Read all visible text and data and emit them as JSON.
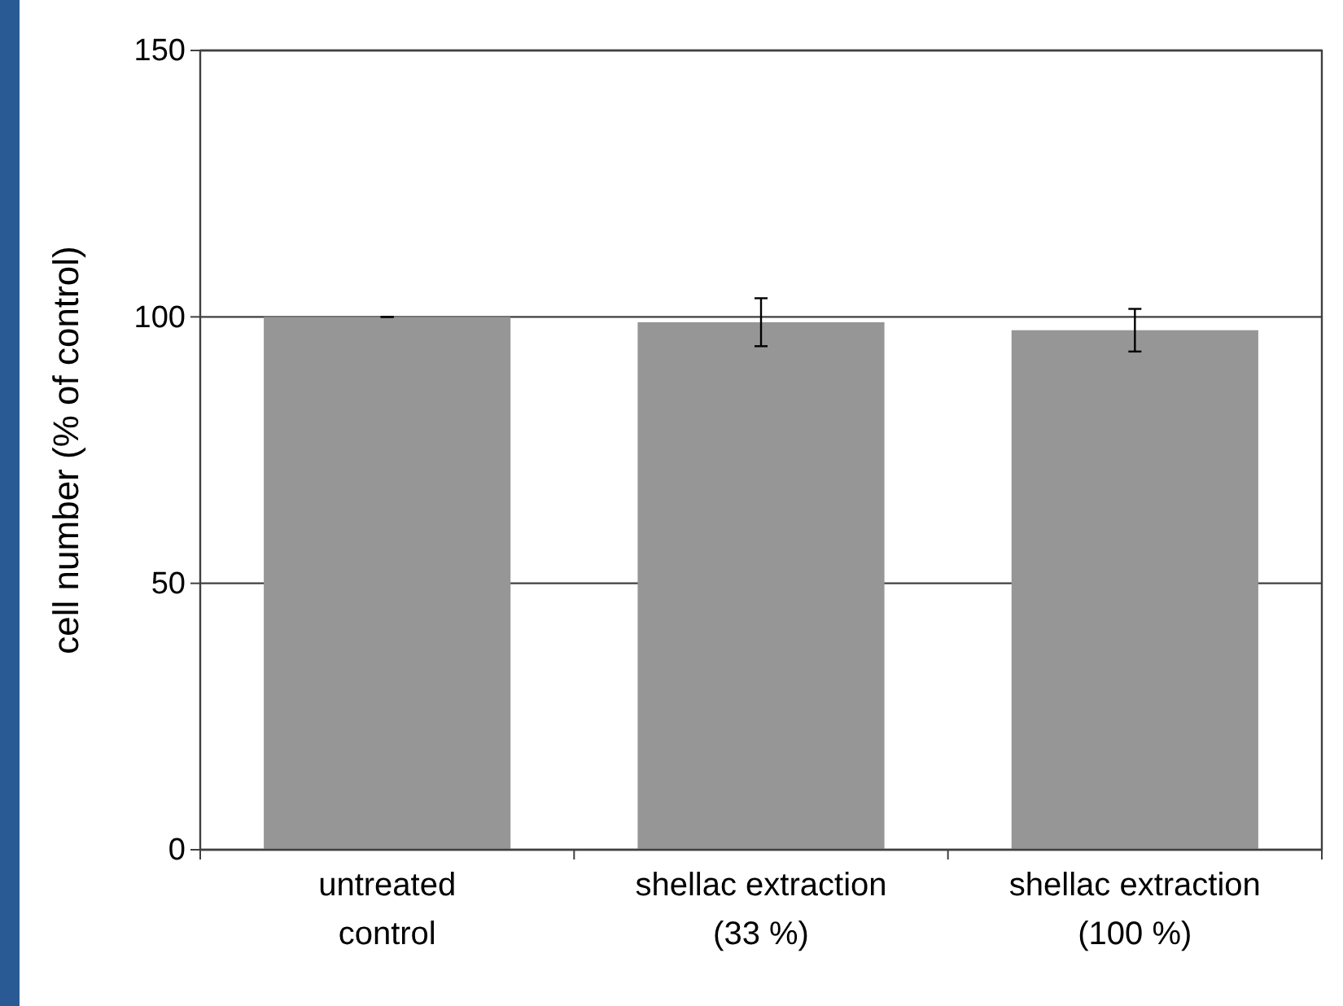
{
  "chart_data": {
    "type": "bar",
    "ylabel": "cell number (% of control)",
    "categories": [
      "untreated\ncontrol",
      "shellac extraction\n(33 %)",
      "shellac extraction\n(100 %)"
    ],
    "values": [
      100,
      99,
      97.5
    ],
    "errors": [
      0,
      4.5,
      4
    ],
    "color": "#969696",
    "ylim": [
      0,
      150
    ],
    "yticks": [
      0,
      50,
      100,
      150
    ],
    "grid": "y"
  }
}
